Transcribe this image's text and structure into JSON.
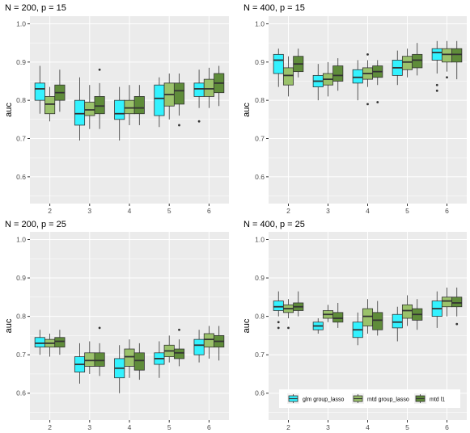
{
  "chart_data": [
    {
      "type": "boxplot",
      "title": "N = 200, p = 15",
      "ylabel": "auc",
      "categories": [
        "2",
        "3",
        "4",
        "5",
        "6"
      ],
      "ylim": [
        0.53,
        1.02
      ],
      "yticks": [
        "0.6",
        "0.7",
        "0.8",
        "0.9",
        "1.0"
      ],
      "series": [
        {
          "name": "glm group_lasso",
          "boxes": [
            {
              "min": 0.765,
              "q1": 0.8,
              "median": 0.83,
              "q3": 0.845,
              "max": 0.89,
              "outliers": []
            },
            {
              "min": 0.695,
              "q1": 0.735,
              "median": 0.765,
              "q3": 0.8,
              "max": 0.86,
              "outliers": []
            },
            {
              "min": 0.695,
              "q1": 0.75,
              "median": 0.765,
              "q3": 0.8,
              "max": 0.835,
              "outliers": []
            },
            {
              "min": 0.73,
              "q1": 0.76,
              "median": 0.805,
              "q3": 0.84,
              "max": 0.86,
              "outliers": []
            },
            {
              "min": 0.78,
              "q1": 0.81,
              "median": 0.83,
              "q3": 0.845,
              "max": 0.88,
              "outliers": [
                0.745
              ]
            }
          ]
        },
        {
          "name": "mtd group_lasso",
          "boxes": [
            {
              "min": 0.745,
              "q1": 0.765,
              "median": 0.79,
              "q3": 0.81,
              "max": 0.835,
              "outliers": []
            },
            {
              "min": 0.725,
              "q1": 0.76,
              "median": 0.775,
              "q3": 0.795,
              "max": 0.84,
              "outliers": []
            },
            {
              "min": 0.735,
              "q1": 0.765,
              "median": 0.78,
              "q3": 0.8,
              "max": 0.84,
              "outliers": []
            },
            {
              "min": 0.75,
              "q1": 0.785,
              "median": 0.815,
              "q3": 0.845,
              "max": 0.87,
              "outliers": []
            },
            {
              "min": 0.78,
              "q1": 0.81,
              "median": 0.83,
              "q3": 0.855,
              "max": 0.885,
              "outliers": []
            }
          ]
        },
        {
          "name": "mtd l1",
          "boxes": [
            {
              "min": 0.77,
              "q1": 0.8,
              "median": 0.82,
              "q3": 0.84,
              "max": 0.88,
              "outliers": []
            },
            {
              "min": 0.725,
              "q1": 0.765,
              "median": 0.785,
              "q3": 0.81,
              "max": 0.845,
              "outliers": [
                0.88
              ]
            },
            {
              "min": 0.735,
              "q1": 0.765,
              "median": 0.78,
              "q3": 0.81,
              "max": 0.84,
              "outliers": []
            },
            {
              "min": 0.76,
              "q1": 0.79,
              "median": 0.825,
              "q3": 0.845,
              "max": 0.87,
              "outliers": [
                0.735
              ]
            },
            {
              "min": 0.785,
              "q1": 0.82,
              "median": 0.845,
              "q3": 0.87,
              "max": 0.89,
              "outliers": []
            }
          ]
        }
      ]
    },
    {
      "type": "boxplot",
      "title": "N = 400, p = 15",
      "ylabel": "auc",
      "categories": [
        "2",
        "3",
        "4",
        "5",
        "6"
      ],
      "ylim": [
        0.53,
        1.02
      ],
      "yticks": [
        "0.6",
        "0.7",
        "0.8",
        "0.9",
        "1.0"
      ],
      "series": [
        {
          "name": "glm group_lasso",
          "boxes": [
            {
              "min": 0.835,
              "q1": 0.87,
              "median": 0.905,
              "q3": 0.92,
              "max": 0.935,
              "outliers": []
            },
            {
              "min": 0.8,
              "q1": 0.835,
              "median": 0.85,
              "q3": 0.865,
              "max": 0.895,
              "outliers": []
            },
            {
              "min": 0.8,
              "q1": 0.845,
              "median": 0.86,
              "q3": 0.88,
              "max": 0.905,
              "outliers": []
            },
            {
              "min": 0.84,
              "q1": 0.865,
              "median": 0.885,
              "q3": 0.905,
              "max": 0.93,
              "outliers": []
            },
            {
              "min": 0.87,
              "q1": 0.905,
              "median": 0.925,
              "q3": 0.935,
              "max": 0.955,
              "outliers": [
                0.84,
                0.825
              ]
            }
          ]
        },
        {
          "name": "mtd group_lasso",
          "boxes": [
            {
              "min": 0.81,
              "q1": 0.84,
              "median": 0.865,
              "q3": 0.885,
              "max": 0.915,
              "outliers": []
            },
            {
              "min": 0.81,
              "q1": 0.84,
              "median": 0.855,
              "q3": 0.87,
              "max": 0.9,
              "outliers": []
            },
            {
              "min": 0.835,
              "q1": 0.855,
              "median": 0.87,
              "q3": 0.885,
              "max": 0.905,
              "outliers": [
                0.92,
                0.79
              ]
            },
            {
              "min": 0.86,
              "q1": 0.88,
              "median": 0.9,
              "q3": 0.915,
              "max": 0.935,
              "outliers": []
            },
            {
              "min": 0.875,
              "q1": 0.9,
              "median": 0.92,
              "q3": 0.935,
              "max": 0.955,
              "outliers": [
                0.86
              ]
            }
          ]
        },
        {
          "name": "mtd l1",
          "boxes": [
            {
              "min": 0.86,
              "q1": 0.875,
              "median": 0.895,
              "q3": 0.915,
              "max": 0.935,
              "outliers": []
            },
            {
              "min": 0.825,
              "q1": 0.85,
              "median": 0.865,
              "q3": 0.89,
              "max": 0.91,
              "outliers": []
            },
            {
              "min": 0.84,
              "q1": 0.86,
              "median": 0.875,
              "q3": 0.89,
              "max": 0.905,
              "outliers": [
                0.795
              ]
            },
            {
              "min": 0.865,
              "q1": 0.885,
              "median": 0.905,
              "q3": 0.92,
              "max": 0.95,
              "outliers": []
            },
            {
              "min": 0.855,
              "q1": 0.9,
              "median": 0.92,
              "q3": 0.935,
              "max": 0.955,
              "outliers": []
            }
          ]
        }
      ]
    },
    {
      "type": "boxplot",
      "title": "N = 200, p = 25",
      "ylabel": "auc",
      "categories": [
        "2",
        "3",
        "4",
        "5",
        "6"
      ],
      "ylim": [
        0.53,
        1.02
      ],
      "yticks": [
        "0.6",
        "0.7",
        "0.8",
        "0.9",
        "1.0"
      ],
      "series": [
        {
          "name": "glm group_lasso",
          "boxes": [
            {
              "min": 0.7,
              "q1": 0.72,
              "median": 0.73,
              "q3": 0.745,
              "max": 0.765,
              "outliers": []
            },
            {
              "min": 0.625,
              "q1": 0.655,
              "median": 0.675,
              "q3": 0.695,
              "max": 0.73,
              "outliers": []
            },
            {
              "min": 0.6,
              "q1": 0.64,
              "median": 0.665,
              "q3": 0.69,
              "max": 0.725,
              "outliers": []
            },
            {
              "min": 0.64,
              "q1": 0.675,
              "median": 0.69,
              "q3": 0.705,
              "max": 0.735,
              "outliers": []
            },
            {
              "min": 0.68,
              "q1": 0.7,
              "median": 0.725,
              "q3": 0.74,
              "max": 0.765,
              "outliers": []
            }
          ]
        },
        {
          "name": "mtd group_lasso",
          "boxes": [
            {
              "min": 0.695,
              "q1": 0.72,
              "median": 0.73,
              "q3": 0.74,
              "max": 0.755,
              "outliers": []
            },
            {
              "min": 0.65,
              "q1": 0.67,
              "median": 0.685,
              "q3": 0.705,
              "max": 0.735,
              "outliers": []
            },
            {
              "min": 0.64,
              "q1": 0.67,
              "median": 0.695,
              "q3": 0.715,
              "max": 0.74,
              "outliers": []
            },
            {
              "min": 0.68,
              "q1": 0.695,
              "median": 0.71,
              "q3": 0.725,
              "max": 0.75,
              "outliers": []
            },
            {
              "min": 0.69,
              "q1": 0.72,
              "median": 0.74,
              "q3": 0.755,
              "max": 0.775,
              "outliers": []
            }
          ]
        },
        {
          "name": "mtd l1",
          "boxes": [
            {
              "min": 0.7,
              "q1": 0.72,
              "median": 0.735,
              "q3": 0.745,
              "max": 0.765,
              "outliers": []
            },
            {
              "min": 0.645,
              "q1": 0.67,
              "median": 0.685,
              "q3": 0.705,
              "max": 0.73,
              "outliers": [
                0.77
              ]
            },
            {
              "min": 0.635,
              "q1": 0.66,
              "median": 0.685,
              "q3": 0.705,
              "max": 0.73,
              "outliers": []
            },
            {
              "min": 0.67,
              "q1": 0.69,
              "median": 0.705,
              "q3": 0.715,
              "max": 0.74,
              "outliers": [
                0.765
              ]
            },
            {
              "min": 0.685,
              "q1": 0.72,
              "median": 0.735,
              "q3": 0.75,
              "max": 0.775,
              "outliers": []
            }
          ]
        }
      ]
    },
    {
      "type": "boxplot",
      "title": "N = 400, p = 25",
      "ylabel": "auc",
      "categories": [
        "2",
        "3",
        "4",
        "5",
        "6"
      ],
      "ylim": [
        0.53,
        1.02
      ],
      "yticks": [
        "0.6",
        "0.7",
        "0.8",
        "0.9",
        "1.0"
      ],
      "legend": {
        "position": "bottom-inside"
      },
      "series": [
        {
          "name": "glm group_lasso",
          "boxes": [
            {
              "min": 0.8,
              "q1": 0.815,
              "median": 0.825,
              "q3": 0.84,
              "max": 0.865,
              "outliers": [
                0.785,
                0.77
              ]
            },
            {
              "min": 0.755,
              "q1": 0.765,
              "median": 0.775,
              "q3": 0.785,
              "max": 0.795,
              "outliers": []
            },
            {
              "min": 0.725,
              "q1": 0.745,
              "median": 0.765,
              "q3": 0.785,
              "max": 0.81,
              "outliers": []
            },
            {
              "min": 0.735,
              "q1": 0.77,
              "median": 0.785,
              "q3": 0.805,
              "max": 0.825,
              "outliers": []
            },
            {
              "min": 0.77,
              "q1": 0.8,
              "median": 0.82,
              "q3": 0.84,
              "max": 0.865,
              "outliers": []
            }
          ]
        },
        {
          "name": "mtd group_lasso",
          "boxes": [
            {
              "min": 0.795,
              "q1": 0.81,
              "median": 0.82,
              "q3": 0.83,
              "max": 0.845,
              "outliers": [
                0.77
              ]
            },
            {
              "min": 0.785,
              "q1": 0.795,
              "median": 0.805,
              "q3": 0.815,
              "max": 0.83,
              "outliers": []
            },
            {
              "min": 0.755,
              "q1": 0.775,
              "median": 0.8,
              "q3": 0.82,
              "max": 0.845,
              "outliers": []
            },
            {
              "min": 0.775,
              "q1": 0.795,
              "median": 0.815,
              "q3": 0.83,
              "max": 0.855,
              "outliers": []
            },
            {
              "min": 0.8,
              "q1": 0.825,
              "median": 0.84,
              "q3": 0.85,
              "max": 0.875,
              "outliers": []
            }
          ]
        },
        {
          "name": "mtd l1",
          "boxes": [
            {
              "min": 0.8,
              "q1": 0.815,
              "median": 0.825,
              "q3": 0.835,
              "max": 0.865,
              "outliers": []
            },
            {
              "min": 0.77,
              "q1": 0.785,
              "median": 0.795,
              "q3": 0.81,
              "max": 0.835,
              "outliers": []
            },
            {
              "min": 0.75,
              "q1": 0.765,
              "median": 0.79,
              "q3": 0.81,
              "max": 0.84,
              "outliers": []
            },
            {
              "min": 0.765,
              "q1": 0.79,
              "median": 0.805,
              "q3": 0.82,
              "max": 0.845,
              "outliers": []
            },
            {
              "min": 0.8,
              "q1": 0.825,
              "median": 0.835,
              "q3": 0.85,
              "max": 0.875,
              "outliers": [
                0.78
              ]
            }
          ]
        }
      ]
    }
  ],
  "legend": {
    "items": [
      {
        "label": "glm group_lasso",
        "color": "#33f2ff"
      },
      {
        "label": "mtd group_lasso",
        "color": "#9bc26b"
      },
      {
        "label": "mtd l1",
        "color": "#5f8c3a"
      }
    ]
  },
  "colors": {
    "panel_background": "#ebebeb",
    "grid_major": "#ffffff",
    "text": "#4d4d4d"
  }
}
